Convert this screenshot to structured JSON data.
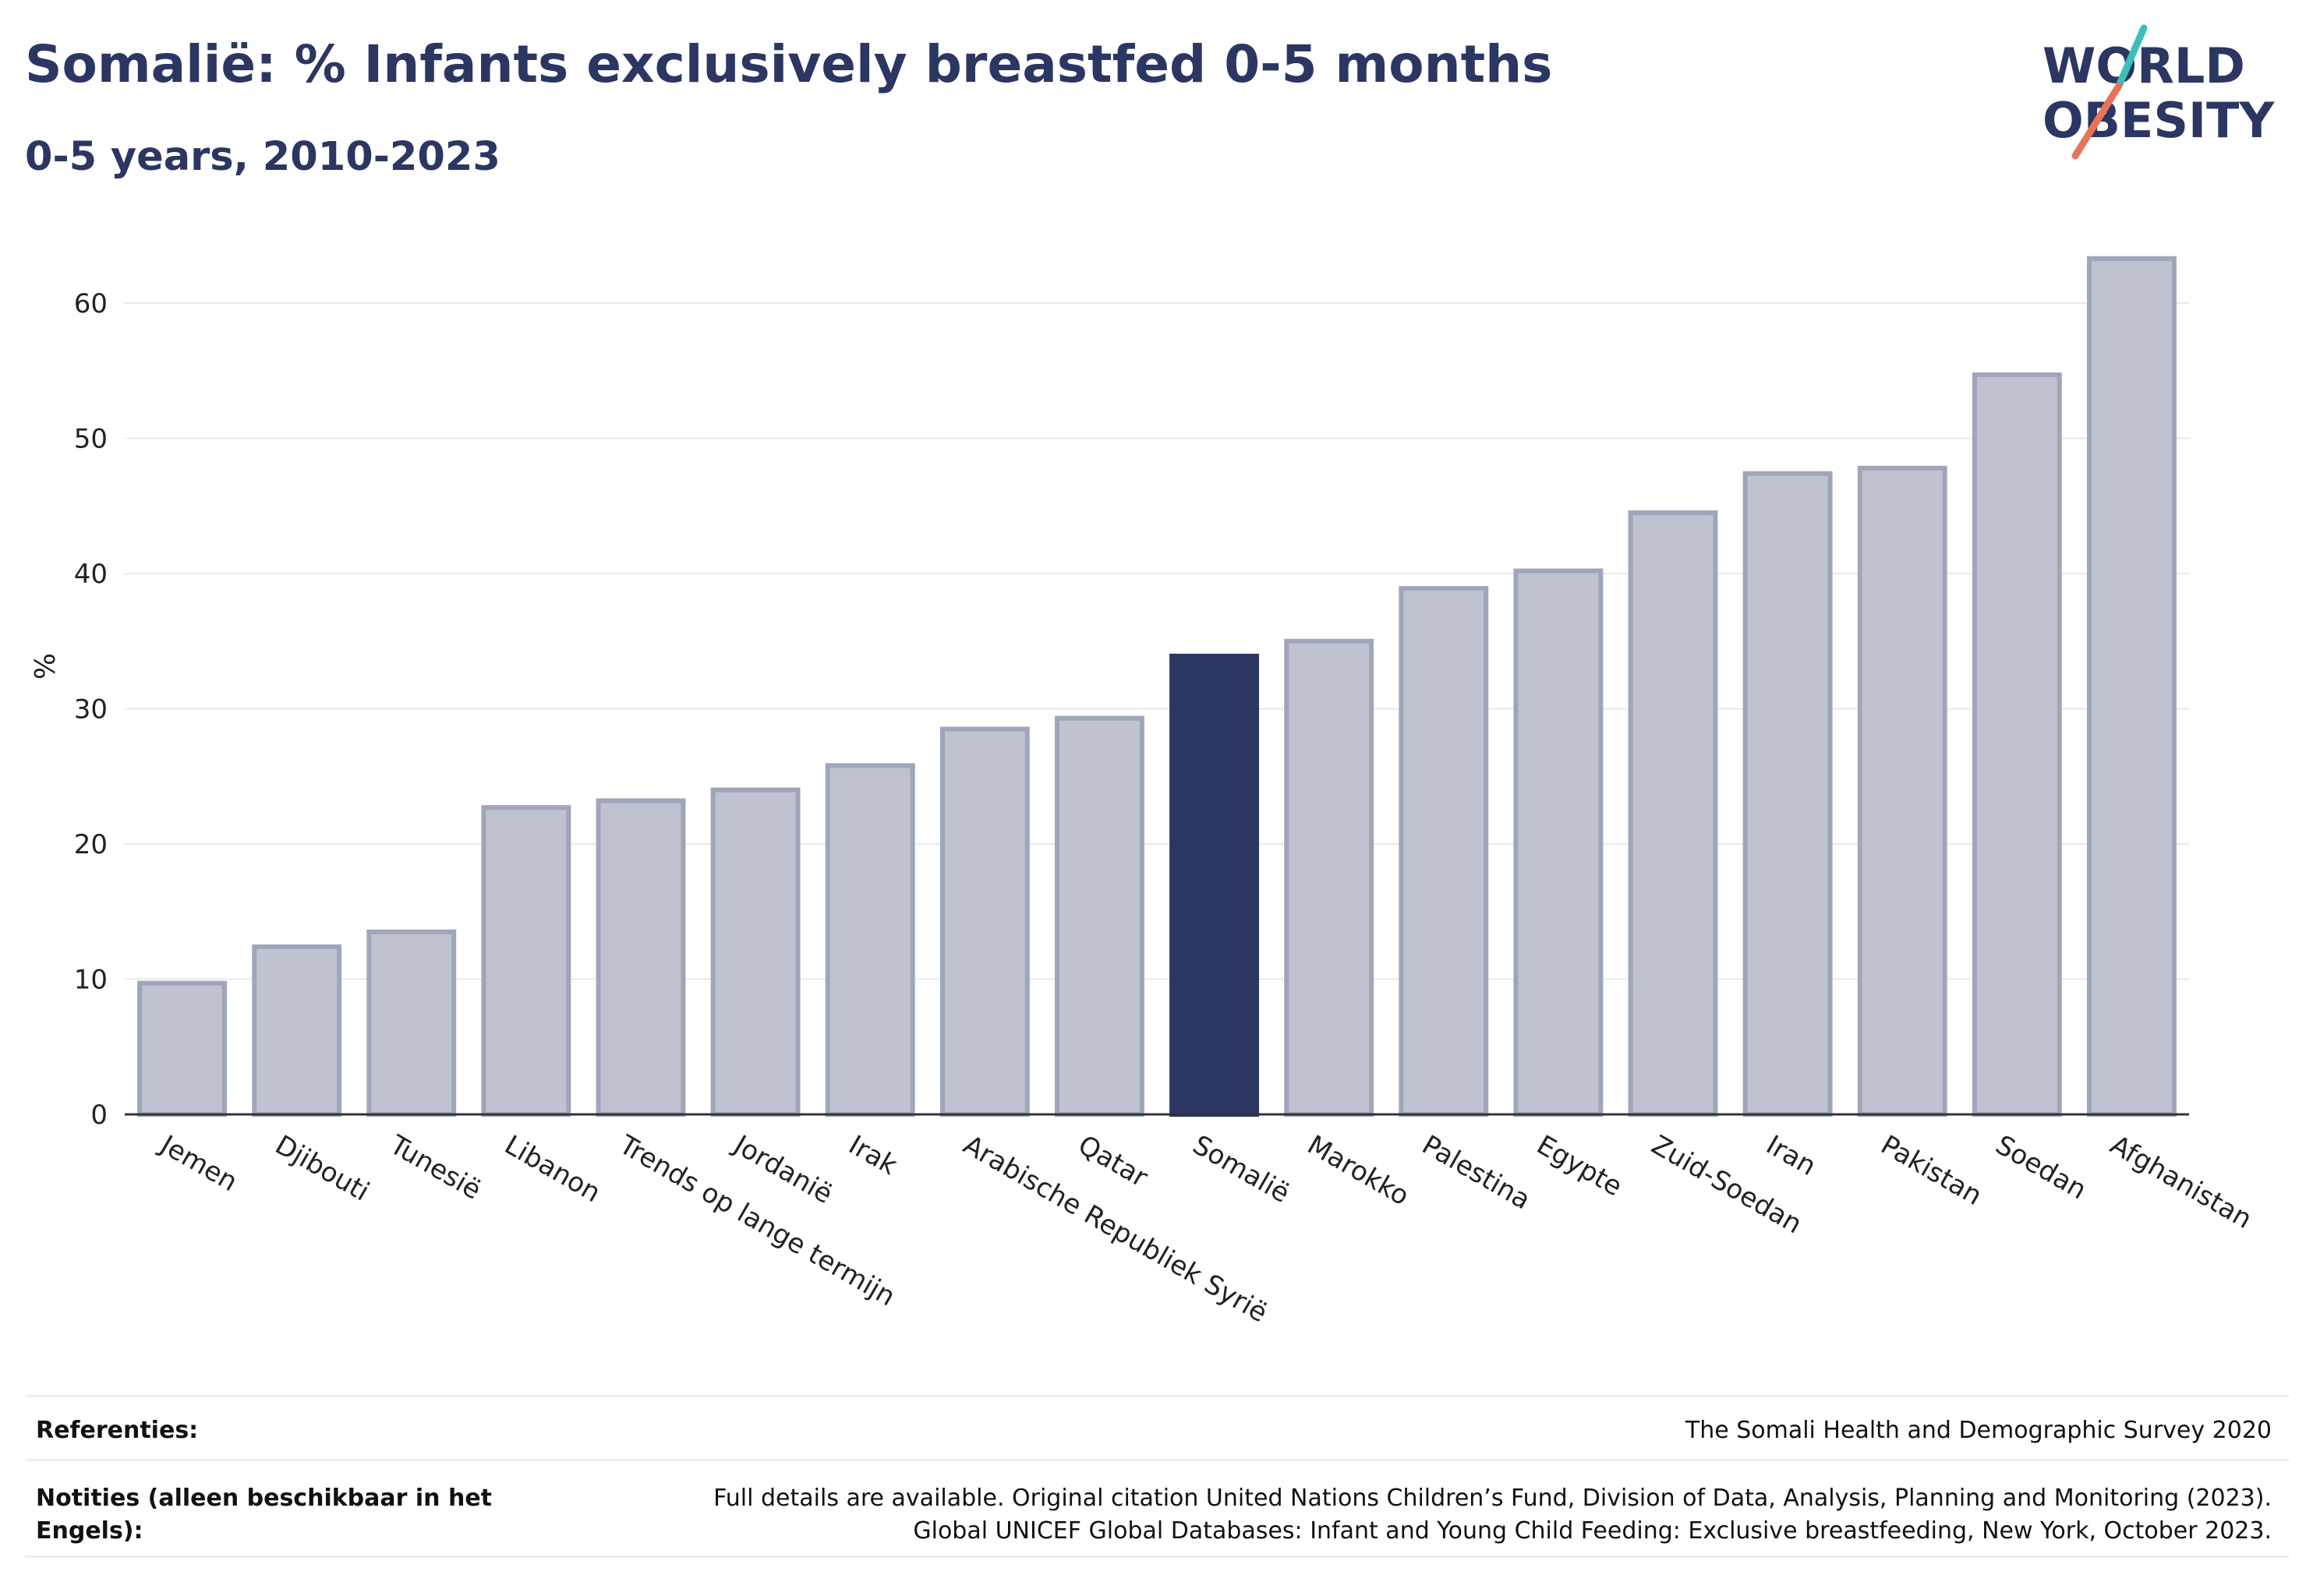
{
  "header": {
    "title": "Somalië: % Infants exclusively breastfed 0-5 months",
    "subtitle": "0-5 years, 2010-2023"
  },
  "logo": {
    "line1": "WORLD",
    "line2": "OBESITY",
    "accent_colors": [
      "#3cbfb8",
      "#e8735a"
    ]
  },
  "chart_data": {
    "type": "bar",
    "ylabel": "%",
    "ylim": [
      0,
      65
    ],
    "yticks": [
      0,
      10,
      20,
      30,
      40,
      50,
      60
    ],
    "grid": true,
    "categories": [
      "Jemen",
      "Djibouti",
      "Tunesië",
      "Libanon",
      "Trends op lange termijn",
      "Jordanië",
      "Irak",
      "Arabische Republiek Syrië",
      "Qatar",
      "Somalië",
      "Marokko",
      "Palestina",
      "Egypte",
      "Zuid-Soedan",
      "Iran",
      "Pakistan",
      "Soedan",
      "Afghanistan"
    ],
    "values": [
      9.7,
      12.4,
      13.5,
      22.7,
      23.2,
      24.0,
      25.8,
      28.5,
      29.3,
      33.9,
      35.0,
      38.9,
      40.2,
      44.5,
      47.4,
      47.8,
      54.7,
      63.3
    ],
    "highlight": "Somalië",
    "colors": {
      "bar": "#bfc3d0",
      "bar_border": "#9fa5bb",
      "highlight": "#2c3662"
    }
  },
  "footer": {
    "references_label": "Referenties:",
    "references_value": "The Somali Health and Demographic Survey 2020",
    "notes_label": "Notities (alleen beschikbaar in het Engels):",
    "notes_line1": "Full details are available. Original citation United Nations Children’s Fund, Division of Data, Analysis, Planning and Monitoring (2023).",
    "notes_line2": "Global UNICEF Global Databases: Infant and Young Child Feeding: Exclusive breastfeeding, New York, October 2023."
  }
}
